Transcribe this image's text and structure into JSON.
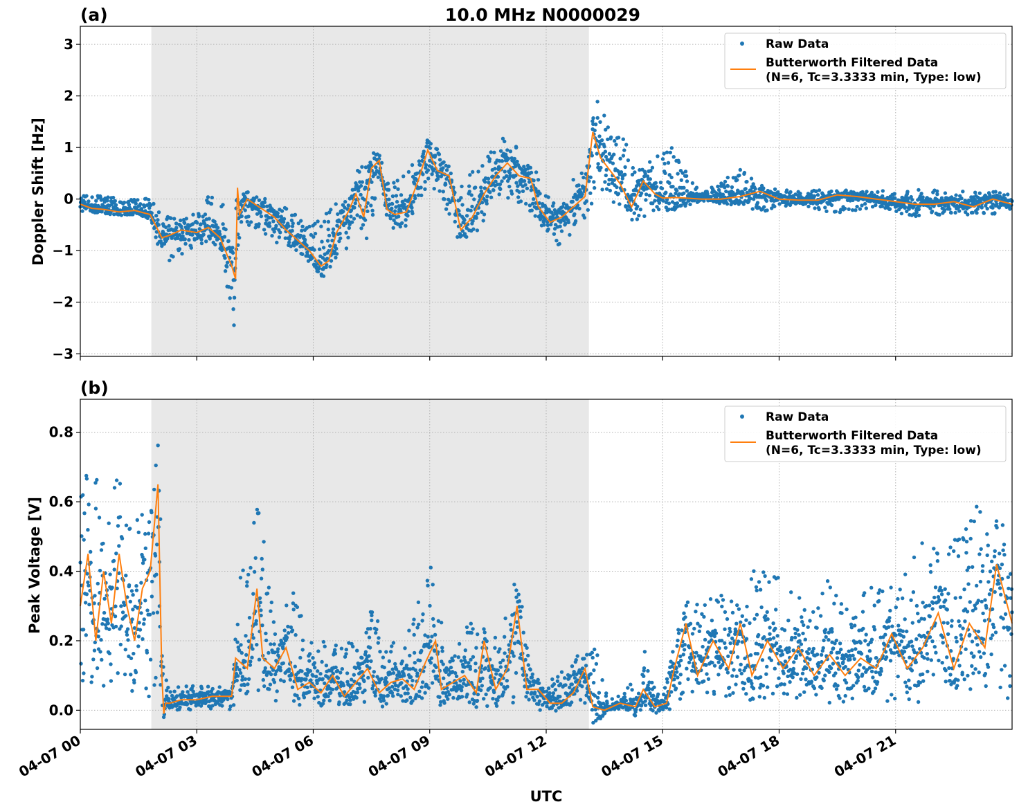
{
  "title": "10.0 MHz N0000029",
  "xlabel": "UTC",
  "colors": {
    "raw": "#1f77b4",
    "filtered": "#ff7f0e",
    "night_shade": "#e8e8e8",
    "grid": "#b0b0b0"
  },
  "chart_data": [
    {
      "panel_label": "(a)",
      "type": "scatter",
      "ylabel": "Doppler Shift [Hz]",
      "xlim_hours": [
        0,
        24
      ],
      "ylim": [
        -3.05,
        3.35
      ],
      "yticks": [
        3,
        2,
        1,
        0,
        -1,
        -2,
        -3
      ],
      "ytick_labels": [
        "3",
        "2",
        "1",
        "0",
        "−1",
        "−2",
        "−3"
      ],
      "xticks_hours": [
        0,
        3,
        6,
        9,
        12,
        15,
        18,
        21
      ],
      "xtick_labels": [
        "04-07 00",
        "04-07 03",
        "04-07 06",
        "04-07 09",
        "04-07 12",
        "04-07 15",
        "04-07 18",
        "04-07 21"
      ],
      "shaded_span_hours": [
        1.83,
        13.1
      ],
      "grid": true,
      "legend_position": "top-right",
      "legend": [
        {
          "kind": "marker",
          "label": "Raw Data"
        },
        {
          "kind": "line",
          "label": "Butterworth Filtered Data",
          "label2": "(N=6, Tc=3.3333 min, Type: low)"
        }
      ],
      "series": [
        {
          "name": "Butterworth Filtered Data",
          "x": [
            0,
            0.3,
            0.6,
            1.0,
            1.4,
            1.8,
            2.1,
            2.3,
            2.6,
            3.0,
            3.3,
            3.6,
            3.9,
            4.0,
            4.05,
            4.1,
            4.3,
            4.6,
            5.0,
            5.3,
            5.6,
            5.9,
            6.2,
            6.4,
            6.6,
            6.9,
            7.1,
            7.3,
            7.5,
            7.7,
            7.9,
            8.1,
            8.4,
            8.7,
            8.95,
            9.2,
            9.5,
            9.8,
            10.1,
            10.4,
            10.7,
            11.0,
            11.3,
            11.6,
            11.8,
            12.1,
            12.4,
            12.7,
            13.0,
            13.2,
            13.4,
            13.6,
            13.9,
            14.2,
            14.5,
            14.8,
            15.0,
            15.3,
            15.6,
            16.0,
            16.5,
            17.0,
            17.5,
            18.0,
            18.5,
            19.0,
            19.5,
            20.0,
            20.5,
            21.0,
            21.5,
            22.0,
            22.5,
            23.0,
            23.5,
            24.0
          ],
          "y": [
            -0.1,
            -0.18,
            -0.2,
            -0.25,
            -0.22,
            -0.3,
            -0.75,
            -0.7,
            -0.6,
            -0.65,
            -0.55,
            -0.75,
            -1.3,
            -1.55,
            0.22,
            -0.3,
            0.0,
            -0.15,
            -0.35,
            -0.6,
            -0.8,
            -1.0,
            -1.3,
            -1.2,
            -0.65,
            -0.25,
            0.1,
            -0.35,
            0.6,
            0.75,
            -0.2,
            -0.3,
            -0.25,
            0.35,
            0.95,
            0.55,
            0.45,
            -0.6,
            -0.35,
            0.1,
            0.45,
            0.7,
            0.45,
            0.4,
            -0.15,
            -0.45,
            -0.35,
            -0.15,
            0.05,
            1.3,
            0.8,
            0.6,
            0.3,
            -0.15,
            0.35,
            0.1,
            0.02,
            0.03,
            0.02,
            0.0,
            0.0,
            0.05,
            0.15,
            0.0,
            -0.02,
            -0.02,
            0.08,
            0.05,
            0.0,
            -0.05,
            -0.1,
            -0.1,
            -0.05,
            -0.15,
            0.0,
            -0.1
          ]
        }
      ],
      "raw_envelope": {
        "x": [
          0,
          1,
          1.8,
          2.0,
          2.3,
          3.0,
          3.3,
          3.7,
          3.95,
          4.1,
          4.4,
          5.0,
          5.6,
          6.0,
          6.4,
          6.8,
          7.1,
          7.4,
          7.7,
          8.0,
          8.4,
          8.9,
          9.3,
          9.7,
          10.1,
          10.5,
          10.9,
          11.3,
          11.7,
          12.0,
          12.3,
          12.7,
          13.1,
          13.3,
          13.6,
          14.0,
          14.4,
          14.8,
          15.2,
          16.0,
          17.0,
          17.6,
          18.5,
          19.5,
          20.5,
          21.5,
          22.5,
          23.5,
          24.0
        ],
        "upper": [
          0.1,
          0.02,
          0.05,
          -0.25,
          -0.3,
          -0.2,
          0.1,
          -0.1,
          -0.2,
          0.15,
          0.1,
          -0.05,
          -0.3,
          -0.5,
          -0.2,
          0.3,
          0.5,
          0.9,
          0.9,
          0.3,
          0.5,
          1.2,
          1.0,
          0.2,
          0.55,
          0.9,
          1.2,
          1.0,
          0.6,
          0.1,
          0.05,
          0.4,
          0.7,
          2.6,
          1.5,
          1.2,
          0.6,
          0.9,
          1.1,
          0.1,
          0.6,
          0.25,
          0.15,
          0.2,
          0.15,
          0.2,
          0.15,
          0.15,
          0.1
        ],
        "lower": [
          -0.25,
          -0.3,
          -0.35,
          -0.9,
          -1.2,
          -0.9,
          -0.8,
          -1.3,
          -2.6,
          -0.7,
          -0.5,
          -0.9,
          -1.0,
          -1.3,
          -1.45,
          -1.2,
          -0.45,
          -0.8,
          0.3,
          -0.55,
          -0.6,
          0.2,
          0.0,
          -0.75,
          -0.7,
          -0.4,
          0.0,
          -0.1,
          -0.3,
          -0.8,
          -0.9,
          -0.7,
          -0.3,
          0.2,
          0.0,
          -0.2,
          -0.45,
          -0.3,
          -0.2,
          -0.05,
          -0.15,
          -0.25,
          -0.1,
          -0.3,
          -0.15,
          -0.35,
          -0.3,
          -0.3,
          -0.2
        ]
      }
    },
    {
      "panel_label": "(b)",
      "type": "scatter",
      "ylabel": "Peak Voltage [V]",
      "xlim_hours": [
        0,
        24
      ],
      "ylim": [
        -0.055,
        0.895
      ],
      "yticks": [
        0.0,
        0.2,
        0.4,
        0.6,
        0.8
      ],
      "ytick_labels": [
        "0.0",
        "0.2",
        "0.4",
        "0.6",
        "0.8"
      ],
      "xticks_hours": [
        0,
        3,
        6,
        9,
        12,
        15,
        18,
        21
      ],
      "xtick_labels": [
        "04-07 00",
        "04-07 03",
        "04-07 06",
        "04-07 09",
        "04-07 12",
        "04-07 15",
        "04-07 18",
        "04-07 21"
      ],
      "shaded_span_hours": [
        1.83,
        13.1
      ],
      "grid": true,
      "legend_position": "top-right",
      "legend": [
        {
          "kind": "marker",
          "label": "Raw Data"
        },
        {
          "kind": "line",
          "label": "Butterworth Filtered Data",
          "label2": "(N=6, Tc=3.3333 min, Type: low)"
        }
      ],
      "series": [
        {
          "name": "Butterworth Filtered Data",
          "x": [
            0,
            0.2,
            0.4,
            0.6,
            0.8,
            1.0,
            1.2,
            1.4,
            1.6,
            1.8,
            2.0,
            2.1,
            2.15,
            2.2,
            2.3,
            2.6,
            3.0,
            3.4,
            3.9,
            4.0,
            4.3,
            4.55,
            4.7,
            5.0,
            5.3,
            5.6,
            5.9,
            6.2,
            6.5,
            6.8,
            7.1,
            7.4,
            7.7,
            8.0,
            8.3,
            8.6,
            8.9,
            9.15,
            9.3,
            9.6,
            9.9,
            10.2,
            10.4,
            10.7,
            11.0,
            11.25,
            11.5,
            11.8,
            12.1,
            12.4,
            12.7,
            13.0,
            13.2,
            13.5,
            13.9,
            14.3,
            14.5,
            14.8,
            15.1,
            15.3,
            15.6,
            15.9,
            16.3,
            16.7,
            17.0,
            17.3,
            17.7,
            18.1,
            18.5,
            18.9,
            19.3,
            19.7,
            20.1,
            20.5,
            20.9,
            21.3,
            21.7,
            22.1,
            22.5,
            22.9,
            23.3,
            23.6,
            24.0
          ],
          "y": [
            0.3,
            0.45,
            0.2,
            0.4,
            0.25,
            0.45,
            0.3,
            0.2,
            0.35,
            0.4,
            0.65,
            0.1,
            -0.01,
            0.02,
            0.02,
            0.03,
            0.03,
            0.04,
            0.04,
            0.15,
            0.12,
            0.35,
            0.15,
            0.12,
            0.18,
            0.06,
            0.08,
            0.05,
            0.1,
            0.04,
            0.08,
            0.12,
            0.05,
            0.08,
            0.09,
            0.06,
            0.14,
            0.2,
            0.06,
            0.08,
            0.1,
            0.05,
            0.2,
            0.06,
            0.12,
            0.3,
            0.06,
            0.06,
            0.02,
            0.02,
            0.05,
            0.12,
            0.01,
            0.0,
            0.02,
            0.01,
            0.06,
            0.01,
            0.02,
            0.12,
            0.25,
            0.1,
            0.2,
            0.12,
            0.25,
            0.1,
            0.2,
            0.12,
            0.18,
            0.1,
            0.16,
            0.1,
            0.15,
            0.12,
            0.22,
            0.12,
            0.18,
            0.28,
            0.12,
            0.25,
            0.18,
            0.42,
            0.25
          ]
        }
      ],
      "raw_envelope": {
        "x": [
          0,
          0.5,
          1.0,
          1.5,
          1.9,
          2.05,
          2.15,
          2.3,
          3.0,
          3.9,
          4.1,
          4.6,
          5.0,
          5.5,
          6.0,
          6.5,
          7.0,
          7.5,
          8.0,
          8.5,
          9.15,
          9.5,
          10.0,
          10.5,
          11.0,
          11.25,
          11.6,
          12.0,
          12.5,
          13.0,
          13.2,
          13.6,
          14.0,
          14.5,
          15.0,
          15.3,
          15.6,
          16.0,
          16.5,
          17.0,
          17.4,
          17.8,
          18.3,
          18.8,
          19.3,
          19.8,
          20.3,
          20.8,
          21.3,
          21.8,
          22.3,
          22.8,
          23.3,
          23.7,
          24.0
        ],
        "upper": [
          0.78,
          0.65,
          0.7,
          0.6,
          0.72,
          0.85,
          0.12,
          0.07,
          0.07,
          0.07,
          0.4,
          0.6,
          0.25,
          0.35,
          0.2,
          0.2,
          0.2,
          0.3,
          0.2,
          0.25,
          0.48,
          0.2,
          0.28,
          0.15,
          0.32,
          0.4,
          0.12,
          0.08,
          0.12,
          0.18,
          0.22,
          0.03,
          0.05,
          0.18,
          0.05,
          0.2,
          0.32,
          0.3,
          0.35,
          0.3,
          0.45,
          0.4,
          0.35,
          0.3,
          0.38,
          0.3,
          0.35,
          0.38,
          0.42,
          0.5,
          0.48,
          0.6,
          0.62,
          0.58,
          0.48
        ],
        "lower": [
          0.08,
          0.06,
          0.1,
          0.02,
          0.0,
          0.02,
          0.0,
          0.0,
          0.0,
          0.0,
          0.02,
          0.02,
          0.01,
          0.02,
          0.02,
          0.01,
          0.01,
          0.02,
          0.01,
          0.02,
          0.02,
          0.01,
          0.02,
          0.01,
          0.01,
          0.02,
          0.0,
          0.0,
          0.0,
          0.0,
          0.0,
          0.0,
          0.0,
          0.0,
          0.0,
          0.0,
          0.04,
          0.03,
          0.03,
          0.04,
          0.02,
          0.02,
          0.03,
          0.02,
          0.02,
          0.01,
          0.02,
          0.02,
          0.02,
          0.02,
          0.03,
          0.04,
          0.03,
          0.04,
          0.03
        ]
      }
    }
  ]
}
